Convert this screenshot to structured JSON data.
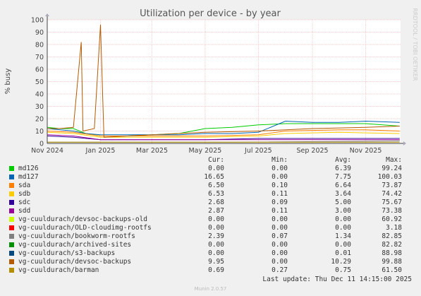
{
  "chart_data": {
    "type": "line",
    "title": "Utilization per device - by year",
    "ylabel": "% busy",
    "side_label": "RRDTOOL / TOBI OETIKER",
    "ylim": [
      0,
      100
    ],
    "yticks": [
      "0",
      "10",
      "20",
      "30",
      "40",
      "50",
      "60",
      "70",
      "80",
      "90",
      "100"
    ],
    "xlim": [
      "2024-11-01",
      "2025-12-11"
    ],
    "x_ticks": [
      {
        "date": "2024-11-01",
        "label": "Nov 2024"
      },
      {
        "date": "2025-01-01",
        "label": "Jan 2025"
      },
      {
        "date": "2025-03-01",
        "label": "Mar 2025"
      },
      {
        "date": "2025-05-01",
        "label": "May 2025"
      },
      {
        "date": "2025-07-01",
        "label": "Jul 2025"
      },
      {
        "date": "2025-09-01",
        "label": "Sep 2025"
      },
      {
        "date": "2025-11-01",
        "label": "Nov 2025"
      }
    ],
    "series": [
      {
        "name": "md126",
        "color": "#00cc00",
        "points": [
          [
            "2024-11-01",
            13
          ],
          [
            "2024-11-15",
            12
          ],
          [
            "2024-12-01",
            12
          ],
          [
            "2024-12-15",
            8
          ],
          [
            "2025-01-01",
            6
          ],
          [
            "2025-02-01",
            6
          ],
          [
            "2025-03-01",
            7
          ],
          [
            "2025-04-01",
            8
          ],
          [
            "2025-05-01",
            12
          ],
          [
            "2025-06-01",
            13
          ],
          [
            "2025-07-01",
            15
          ],
          [
            "2025-08-01",
            16
          ],
          [
            "2025-09-01",
            16
          ],
          [
            "2025-10-01",
            16
          ],
          [
            "2025-11-01",
            16
          ],
          [
            "2025-12-10",
            14
          ]
        ]
      },
      {
        "name": "md127",
        "color": "#0066b3",
        "points": [
          [
            "2024-11-01",
            12
          ],
          [
            "2024-12-01",
            10
          ],
          [
            "2024-12-15",
            8
          ],
          [
            "2025-01-01",
            7
          ],
          [
            "2025-02-01",
            7
          ],
          [
            "2025-03-01",
            7
          ],
          [
            "2025-04-01",
            7
          ],
          [
            "2025-05-01",
            8
          ],
          [
            "2025-06-01",
            8
          ],
          [
            "2025-07-01",
            9
          ],
          [
            "2025-08-01",
            18
          ],
          [
            "2025-09-01",
            17
          ],
          [
            "2025-10-01",
            17
          ],
          [
            "2025-11-01",
            18
          ],
          [
            "2025-12-10",
            17
          ]
        ]
      },
      {
        "name": "sda",
        "color": "#ff8000",
        "points": [
          [
            "2024-11-01",
            10
          ],
          [
            "2024-12-01",
            9
          ],
          [
            "2025-01-01",
            6
          ],
          [
            "2025-03-01",
            6
          ],
          [
            "2025-05-01",
            6
          ],
          [
            "2025-07-01",
            7
          ],
          [
            "2025-08-01",
            10
          ],
          [
            "2025-10-01",
            11
          ],
          [
            "2025-11-01",
            11
          ],
          [
            "2025-12-10",
            10
          ]
        ]
      },
      {
        "name": "sdb",
        "color": "#ffcc00",
        "points": [
          [
            "2024-11-01",
            9
          ],
          [
            "2024-12-01",
            8
          ],
          [
            "2025-01-01",
            5
          ],
          [
            "2025-03-01",
            5
          ],
          [
            "2025-05-01",
            5
          ],
          [
            "2025-07-01",
            6
          ],
          [
            "2025-08-01",
            8
          ],
          [
            "2025-10-01",
            9
          ],
          [
            "2025-12-10",
            8
          ]
        ]
      },
      {
        "name": "sdc",
        "color": "#330099",
        "points": [
          [
            "2024-11-01",
            6
          ],
          [
            "2024-12-01",
            5
          ],
          [
            "2025-01-01",
            3
          ],
          [
            "2025-03-01",
            3
          ],
          [
            "2025-05-01",
            3
          ],
          [
            "2025-07-01",
            4
          ],
          [
            "2025-09-01",
            4
          ],
          [
            "2025-11-01",
            4
          ],
          [
            "2025-12-10",
            4
          ]
        ]
      },
      {
        "name": "sdd",
        "color": "#990099",
        "points": [
          [
            "2024-11-01",
            7
          ],
          [
            "2024-12-01",
            6
          ],
          [
            "2025-01-01",
            3
          ],
          [
            "2025-03-01",
            3
          ],
          [
            "2025-05-01",
            3
          ],
          [
            "2025-07-01",
            3
          ],
          [
            "2025-09-01",
            3
          ],
          [
            "2025-11-01",
            3
          ],
          [
            "2025-12-10",
            3
          ]
        ]
      },
      {
        "name": "vg-cuuldurach/devsoc-backups-old",
        "color": "#ccff00",
        "points": [
          [
            "2024-11-01",
            0
          ],
          [
            "2025-12-10",
            0
          ]
        ]
      },
      {
        "name": "vg-cuuldurach/OLD-cloudimg-rootfs",
        "color": "#ff0000",
        "points": [
          [
            "2024-11-01",
            0
          ],
          [
            "2025-12-10",
            0
          ]
        ]
      },
      {
        "name": "vg-cuuldurach/bookworm-rootfs",
        "color": "#808080",
        "points": [
          [
            "2024-11-01",
            1
          ],
          [
            "2025-06-01",
            1
          ],
          [
            "2025-12-10",
            2
          ]
        ]
      },
      {
        "name": "vg-cuuldurach/archived-sites",
        "color": "#008f00",
        "points": [
          [
            "2024-11-01",
            0
          ],
          [
            "2025-12-10",
            0
          ]
        ]
      },
      {
        "name": "vg-cuuldurach/s3-backups",
        "color": "#00487d",
        "points": [
          [
            "2024-11-01",
            0
          ],
          [
            "2025-12-10",
            0
          ]
        ]
      },
      {
        "name": "vg-cuuldurach/devsoc-backups",
        "color": "#b35a00",
        "points": [
          [
            "2024-11-01",
            12
          ],
          [
            "2024-11-15",
            12
          ],
          [
            "2024-12-01",
            13
          ],
          [
            "2024-12-10",
            82
          ],
          [
            "2024-12-12",
            10
          ],
          [
            "2024-12-25",
            12
          ],
          [
            "2025-01-01",
            96
          ],
          [
            "2025-01-05",
            5
          ],
          [
            "2025-02-01",
            6
          ],
          [
            "2025-03-01",
            7
          ],
          [
            "2025-05-01",
            9
          ],
          [
            "2025-07-01",
            10
          ],
          [
            "2025-09-01",
            12
          ],
          [
            "2025-11-01",
            13
          ],
          [
            "2025-12-10",
            14
          ]
        ]
      },
      {
        "name": "vg-cuuldurach/barman",
        "color": "#b38f00",
        "points": [
          [
            "2024-11-01",
            1
          ],
          [
            "2025-12-10",
            1
          ]
        ]
      }
    ]
  },
  "legend": {
    "headers": {
      "cur": "Cur:",
      "min": "Min:",
      "avg": "Avg:",
      "max": "Max:"
    },
    "rows": [
      {
        "name": "md126",
        "color": "#00cc00",
        "cur": "0.00",
        "min": "0.00",
        "avg": "6.39",
        "max": "99.24"
      },
      {
        "name": "md127",
        "color": "#0066b3",
        "cur": "16.65",
        "min": "0.00",
        "avg": "7.75",
        "max": "100.03"
      },
      {
        "name": "sda",
        "color": "#ff8000",
        "cur": "6.50",
        "min": "0.10",
        "avg": "6.64",
        "max": "73.87"
      },
      {
        "name": "sdb",
        "color": "#ffcc00",
        "cur": "6.53",
        "min": "0.11",
        "avg": "3.64",
        "max": "74.42"
      },
      {
        "name": "sdc",
        "color": "#330099",
        "cur": "2.68",
        "min": "0.09",
        "avg": "5.00",
        "max": "75.67"
      },
      {
        "name": "sdd",
        "color": "#990099",
        "cur": "2.87",
        "min": "0.11",
        "avg": "3.00",
        "max": "73.38"
      },
      {
        "name": "vg-cuuldurach/devsoc-backups-old",
        "color": "#ccff00",
        "cur": "0.00",
        "min": "0.00",
        "avg": "0.00",
        "max": "60.92"
      },
      {
        "name": "vg-cuuldurach/OLD-cloudimg-rootfs",
        "color": "#ff0000",
        "cur": "0.00",
        "min": "0.00",
        "avg": "0.00",
        "max": "3.18"
      },
      {
        "name": "vg-cuuldurach/bookworm-rootfs",
        "color": "#808080",
        "cur": "2.39",
        "min": "0.07",
        "avg": "1.34",
        "max": "82.85"
      },
      {
        "name": "vg-cuuldurach/archived-sites",
        "color": "#008f00",
        "cur": "0.00",
        "min": "0.00",
        "avg": "0.00",
        "max": "82.82"
      },
      {
        "name": "vg-cuuldurach/s3-backups",
        "color": "#00487d",
        "cur": "0.00",
        "min": "0.00",
        "avg": "0.01",
        "max": "88.98"
      },
      {
        "name": "vg-cuuldurach/devsoc-backups",
        "color": "#b35a00",
        "cur": "9.95",
        "min": "0.00",
        "avg": "10.29",
        "max": "99.88"
      },
      {
        "name": "vg-cuuldurach/barman",
        "color": "#b38f00",
        "cur": "0.69",
        "min": "0.27",
        "avg": "0.75",
        "max": "61.50"
      }
    ]
  },
  "last_update": "Last update: Thu Dec 11 14:15:00 2025",
  "footer": "Munin 2.0.57"
}
